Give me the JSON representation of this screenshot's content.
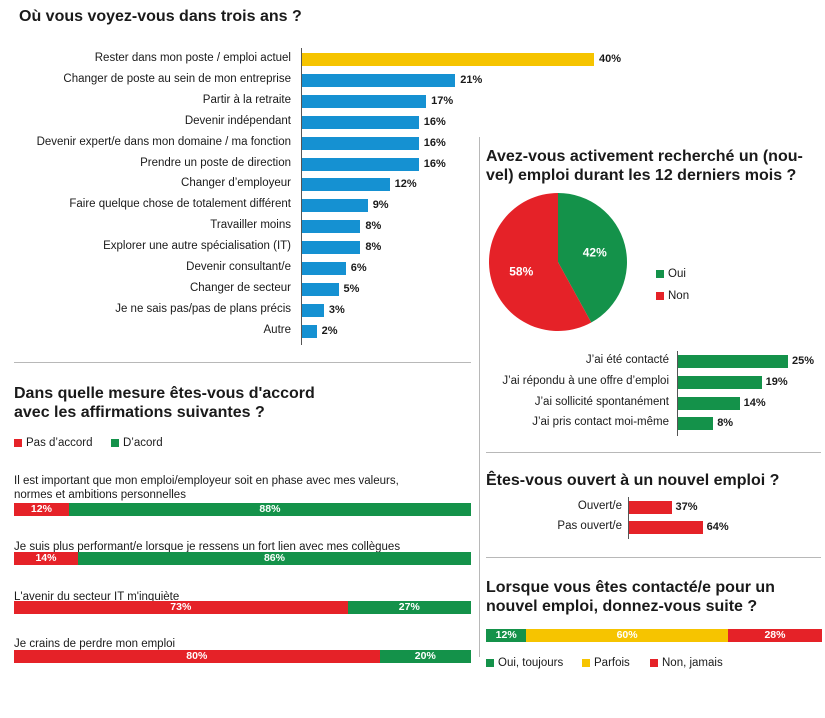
{
  "colors": {
    "yellow": "#f6c400",
    "blue": "#1591d2",
    "green": "#14924a",
    "red": "#e52228"
  },
  "chart_data": [
    {
      "id": "future",
      "type": "bar",
      "orientation": "horizontal",
      "title": "Où vous voyez-vous dans trois ans ?",
      "categories": [
        "Rester dans mon poste / emploi actuel",
        "Changer de poste au sein de mon entreprise",
        "Partir à la retraite",
        "Devenir indépendant",
        "Devenir expert/e dans mon domaine / ma fonction",
        "Prendre un poste de direction",
        "Changer d’employeur",
        "Faire quelque chose de totalement différent",
        "Travailler moins",
        "Explorer une autre spécialisation (IT)",
        "Devenir consultant/e",
        "Changer de secteur",
        "Je ne sais pas/pas de plans précis",
        "Autre"
      ],
      "values": [
        40,
        21,
        17,
        16,
        16,
        16,
        12,
        9,
        8,
        8,
        6,
        5,
        3,
        2
      ],
      "labels": [
        "40%",
        "21%",
        "17%",
        "16%",
        "16%",
        "16%",
        "12%",
        "9%",
        "8%",
        "8%",
        "6%",
        "5%",
        "3%",
        "2%"
      ],
      "highlight_color": "yellow",
      "bar_color": "blue"
    },
    {
      "id": "search",
      "type": "pie",
      "title": "Avez-vous activement recherché un (nou-vel) emploi durant les 12 derniers mois ?",
      "title_lines": [
        "Avez-vous activement recherché un (nou-",
        "vel) emploi durant les 12 derniers mois ?"
      ],
      "slices": [
        {
          "name": "Oui",
          "value": 42,
          "label": "42%",
          "color": "green"
        },
        {
          "name": "Non",
          "value": 58,
          "label": "58%",
          "color": "red"
        }
      ]
    },
    {
      "id": "how",
      "type": "bar",
      "orientation": "horizontal",
      "categories": [
        "J’ai été contacté",
        "J’ai répondu à une offre d’emploi",
        "J’ai sollicité spontanément",
        "J’ai pris contact moi-même"
      ],
      "values": [
        25,
        19,
        14,
        8
      ],
      "labels": [
        "25%",
        "19%",
        "14%",
        "8%"
      ],
      "bar_color": "green"
    },
    {
      "id": "open",
      "type": "bar",
      "orientation": "horizontal",
      "title": "Êtes-vous ouvert à un nouvel emploi ?",
      "categories": [
        "Ouvert/e",
        "Pas ouvert/e"
      ],
      "values": [
        37,
        64
      ],
      "labels": [
        "37%",
        "64%"
      ],
      "bar_color": "red"
    },
    {
      "id": "agree",
      "type": "bar",
      "orientation": "horizontal",
      "stacked": true,
      "title": "Dans quelle mesure êtes-vous d'accord avec les affirmations suivantes ?",
      "title_lines": [
        "Dans quelle mesure êtes-vous d'accord",
        "avec les affirmations suivantes ?"
      ],
      "legend": [
        {
          "name": "Pas d’accord",
          "color": "red"
        },
        {
          "name": "D’acord",
          "color": "green"
        }
      ],
      "items": [
        {
          "lines": [
            "Il est important que mon emploi/employeur soit en phase avec mes valeurs,",
            "normes et ambitions personnelles"
          ],
          "values": [
            12,
            88
          ],
          "labels": [
            "12%",
            "88%"
          ]
        },
        {
          "lines": [
            "Je suis plus performant/e lorsque je ressens un fort lien avec mes collègues"
          ],
          "values": [
            14,
            86
          ],
          "labels": [
            "14%",
            "86%"
          ]
        },
        {
          "lines": [
            "L'avenir du secteur IT m'inquiète"
          ],
          "values": [
            73,
            27
          ],
          "labels": [
            "73%",
            "27%"
          ]
        },
        {
          "lines": [
            "Je crains de perdre mon emploi"
          ],
          "values": [
            80,
            20
          ],
          "labels": [
            "80%",
            "20%"
          ]
        }
      ]
    },
    {
      "id": "response",
      "type": "bar",
      "orientation": "horizontal",
      "stacked": true,
      "title": "Lorsque vous êtes contacté/e pour un nouvel emploi, donnez-vous suite ?",
      "title_lines": [
        "Lorsque vous êtes contacté/e pour un",
        "nouvel emploi, donnez-vous suite ?"
      ],
      "segments": [
        {
          "name": "Oui, toujours",
          "value": 12,
          "label": "12%",
          "color": "green"
        },
        {
          "name": "Parfois",
          "value": 60,
          "label": "60%",
          "color": "yellow"
        },
        {
          "name": "Non, jamais",
          "value": 28,
          "label": "28%",
          "color": "red"
        }
      ]
    }
  ]
}
